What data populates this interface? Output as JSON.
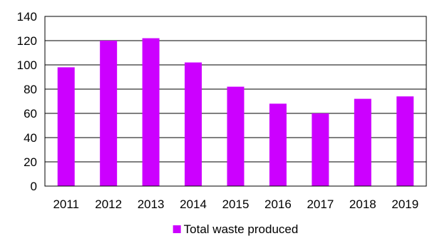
{
  "chart_data": {
    "type": "bar",
    "categories": [
      "2011",
      "2012",
      "2013",
      "2014",
      "2015",
      "2016",
      "2017",
      "2018",
      "2019"
    ],
    "series": [
      {
        "name": "Total waste produced",
        "values": [
          98,
          120,
          122,
          102,
          82,
          68,
          60,
          72,
          74
        ],
        "color": "#cc00ff"
      }
    ],
    "title": "",
    "xlabel": "",
    "ylabel": "",
    "ylim": [
      0,
      140
    ],
    "yticks": [
      0,
      20,
      40,
      60,
      80,
      100,
      120,
      140
    ],
    "grid": true,
    "legend_position": "bottom"
  }
}
